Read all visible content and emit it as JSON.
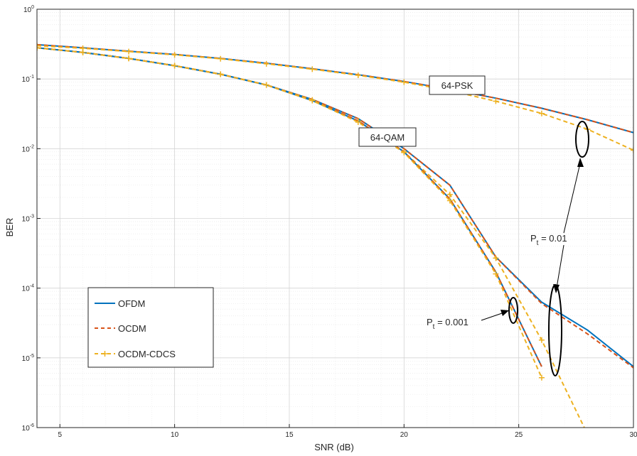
{
  "chart_data": {
    "type": "line",
    "xlabel": "SNR (dB)",
    "ylabel": "BER",
    "xlim": [
      4,
      30
    ],
    "ylim": [
      1e-06,
      1
    ],
    "yscale": "log",
    "grid": true,
    "minor_grid": true,
    "x_ticks": [
      5,
      10,
      15,
      20,
      25,
      30
    ],
    "x_tick_labels": [
      "5",
      "10",
      "15",
      "20",
      "25",
      "30"
    ],
    "y_ticks": [
      1e-06,
      1e-05,
      0.0001,
      0.001,
      0.01,
      0.1,
      1
    ],
    "y_tick_labels": [
      {
        "base": "10",
        "exp": "-6"
      },
      {
        "base": "10",
        "exp": "-5"
      },
      {
        "base": "10",
        "exp": "-4"
      },
      {
        "base": "10",
        "exp": "-3"
      },
      {
        "base": "10",
        "exp": "-2"
      },
      {
        "base": "10",
        "exp": "-1"
      },
      {
        "base": "10",
        "exp": "0"
      }
    ],
    "legend": {
      "placement": "lower-left",
      "entries": [
        {
          "label": "OFDM",
          "color": "#0072bd",
          "style": "solid",
          "marker": "none"
        },
        {
          "label": "OCDM",
          "color": "#d95319",
          "style": "dashed",
          "marker": "none"
        },
        {
          "label": "OCDM-CDCS",
          "color": "#edb120",
          "style": "dashed",
          "marker": "plus"
        }
      ]
    },
    "series": [
      {
        "group": "64-PSK",
        "name": "OFDM",
        "color": "#0072bd",
        "style": "solid",
        "marker": "none",
        "x": [
          4,
          6,
          8,
          10,
          12,
          14,
          16,
          18,
          20,
          22,
          24,
          26,
          28,
          30
        ],
        "y": [
          0.31,
          0.28,
          0.25,
          0.225,
          0.197,
          0.168,
          0.14,
          0.115,
          0.092,
          0.071,
          0.053,
          0.038,
          0.026,
          0.017
        ]
      },
      {
        "group": "64-PSK",
        "name": "OCDM",
        "color": "#d95319",
        "style": "dashed",
        "marker": "none",
        "x": [
          4,
          6,
          8,
          10,
          12,
          14,
          16,
          18,
          20,
          22,
          24,
          26,
          28,
          30
        ],
        "y": [
          0.31,
          0.28,
          0.25,
          0.225,
          0.197,
          0.168,
          0.14,
          0.115,
          0.092,
          0.071,
          0.053,
          0.038,
          0.026,
          0.017
        ]
      },
      {
        "group": "64-PSK",
        "name": "OCDM-CDCS",
        "color": "#edb120",
        "style": "dashed",
        "marker": "plus",
        "x": [
          4,
          6,
          8,
          10,
          12,
          14,
          16,
          18,
          20,
          22,
          24,
          26,
          28,
          30
        ],
        "y": [
          0.3,
          0.275,
          0.247,
          0.222,
          0.195,
          0.165,
          0.138,
          0.113,
          0.09,
          0.068,
          0.048,
          0.032,
          0.019,
          0.0095
        ]
      },
      {
        "group": "64-QAM",
        "name": "OFDM",
        "color": "#0072bd",
        "style": "solid",
        "marker": "none",
        "x": [
          4,
          6,
          8,
          10,
          12,
          14,
          16,
          18,
          20,
          22,
          24,
          26,
          28,
          30
        ],
        "y": [
          0.28,
          0.24,
          0.197,
          0.155,
          0.117,
          0.082,
          0.051,
          0.027,
          0.01,
          0.003,
          0.00028,
          6.3e-05,
          2.5e-05,
          7.5e-06
        ]
      },
      {
        "group": "64-QAM",
        "name": "OCDM",
        "color": "#d95319",
        "style": "dashed",
        "marker": "none",
        "x": [
          4,
          6,
          8,
          10,
          12,
          14,
          16,
          18,
          20,
          22,
          24,
          26,
          28,
          30
        ],
        "y": [
          0.28,
          0.24,
          0.197,
          0.155,
          0.117,
          0.082,
          0.051,
          0.027,
          0.01,
          0.003,
          0.00028,
          6e-05,
          2.2e-05,
          7.2e-06
        ]
      },
      {
        "group": "64-QAM",
        "name": "OCDM-CDCS",
        "color": "#edb120",
        "style": "dashed",
        "marker": "plus",
        "x": [
          4,
          6,
          8,
          10,
          12,
          14,
          16,
          18,
          20,
          22,
          24,
          26,
          28
        ],
        "y": [
          0.28,
          0.24,
          0.197,
          0.155,
          0.117,
          0.082,
          0.05,
          0.025,
          0.009,
          0.0022,
          0.00027,
          1.8e-05,
          8e-07
        ]
      },
      {
        "group": "64-QAM",
        "name": "OFDM",
        "color": "#0072bd",
        "style": "solid",
        "marker": "none",
        "x": [
          4,
          6,
          8,
          10,
          12,
          14,
          16,
          18,
          20,
          22,
          24,
          26
        ],
        "y": [
          0.28,
          0.24,
          0.197,
          0.155,
          0.117,
          0.082,
          0.049,
          0.025,
          0.009,
          0.0019,
          0.00017,
          7.5e-06
        ]
      },
      {
        "group": "64-QAM",
        "name": "OCDM",
        "color": "#d95319",
        "style": "dashed",
        "marker": "none",
        "x": [
          4,
          6,
          8,
          10,
          12,
          14,
          16,
          18,
          20,
          22,
          24,
          26
        ],
        "y": [
          0.28,
          0.24,
          0.197,
          0.155,
          0.117,
          0.082,
          0.049,
          0.025,
          0.009,
          0.0019,
          0.00017,
          7.5e-06
        ]
      },
      {
        "group": "64-QAM",
        "name": "OCDM-CDCS",
        "color": "#edb120",
        "style": "dashed",
        "marker": "plus",
        "x": [
          4,
          6,
          8,
          10,
          12,
          14,
          16,
          18,
          20,
          22,
          24,
          26
        ],
        "y": [
          0.28,
          0.24,
          0.197,
          0.155,
          0.117,
          0.082,
          0.049,
          0.024,
          0.0088,
          0.0018,
          0.00016,
          5.2e-06
        ]
      }
    ],
    "annotations": [
      {
        "id": "psk",
        "text": "64-PSK",
        "boxed": true
      },
      {
        "id": "qam",
        "text": "64-QAM",
        "boxed": true
      },
      {
        "id": "pt001",
        "prefix": "P",
        "sub": "t",
        "suffix": " = 0.01"
      },
      {
        "id": "pt0001",
        "prefix": "P",
        "sub": "t",
        "suffix": " = 0.001"
      }
    ]
  }
}
